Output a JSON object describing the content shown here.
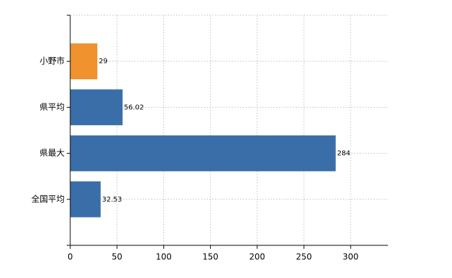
{
  "chart_data": {
    "type": "bar",
    "orientation": "horizontal",
    "categories": [
      "小野市",
      "県平均",
      "県最大",
      "全国平均"
    ],
    "values": [
      29,
      56.02,
      284,
      32.53
    ],
    "colors": [
      "#f0922e",
      "#3a6ea8",
      "#3a6ea8",
      "#3a6ea8"
    ],
    "xlim": [
      0,
      340
    ],
    "xticks": [
      0,
      50,
      100,
      150,
      200,
      250,
      300
    ],
    "grid": true
  }
}
